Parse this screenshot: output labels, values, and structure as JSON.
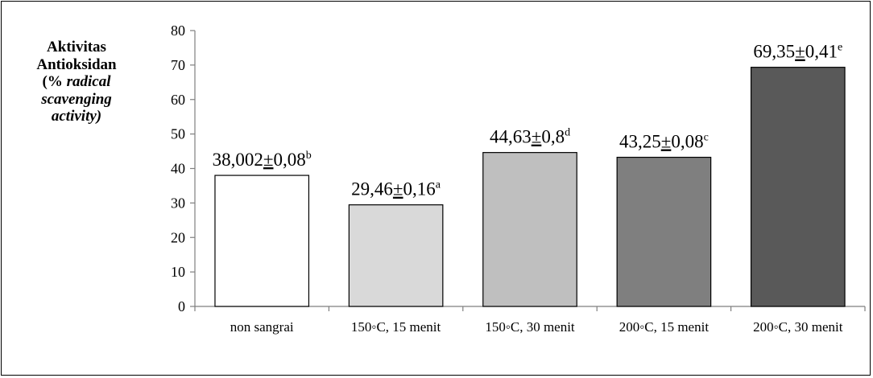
{
  "chart_data": {
    "type": "bar",
    "ylabel": {
      "line1": "Aktivitas",
      "line2": "Antioksidan",
      "line3_prefix": "(%",
      "line3_italic": "radical",
      "line4": "scavenging",
      "line5": "activity)"
    },
    "xlabel": "",
    "ylim": [
      0,
      80
    ],
    "yticks": [
      0,
      10,
      20,
      30,
      40,
      50,
      60,
      70,
      80
    ],
    "grid": false,
    "categories": [
      "non sangrai",
      "150◦C, 15 menit",
      "150◦C, 30 menit",
      "200◦C, 15 menit",
      "200◦C, 30 menit"
    ],
    "values": [
      38.002,
      29.46,
      44.63,
      43.25,
      69.35
    ],
    "labels": [
      {
        "mean": "38,002",
        "pm": "±",
        "sd": "0,08",
        "sup": "b"
      },
      {
        "mean": "29,46",
        "pm": "±",
        "sd": "0,16",
        "sup": "a"
      },
      {
        "mean": "44,63",
        "pm": "±",
        "sd": "0,8",
        "sup": "d"
      },
      {
        "mean": "43,25",
        "pm": "±",
        "sd": "0,08",
        "sup": "c"
      },
      {
        "mean": "69,35",
        "pm": "±",
        "sd": "0,41",
        "sup": "e"
      }
    ],
    "colors": [
      "#ffffff",
      "#d9d9d9",
      "#bfbfbf",
      "#7f7f7f",
      "#595959"
    ]
  }
}
